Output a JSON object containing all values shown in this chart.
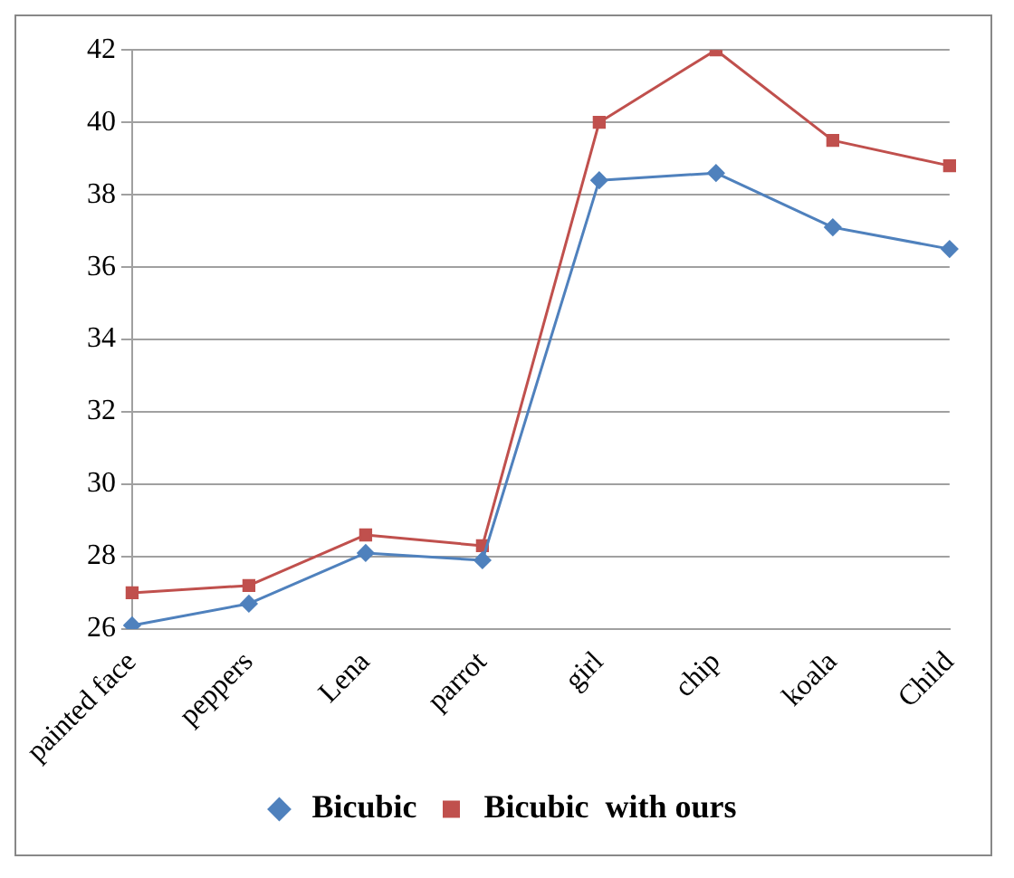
{
  "chart_data": {
    "type": "line",
    "categories": [
      "painted face",
      "peppers",
      "Lena",
      "parrot",
      "girl",
      "chip",
      "koala",
      "Child"
    ],
    "series": [
      {
        "name": "Bicubic",
        "color": "#4f81bd",
        "marker": "diamond",
        "values": [
          26.1,
          26.7,
          28.1,
          27.9,
          38.4,
          38.6,
          37.1,
          36.5
        ]
      },
      {
        "name": "Bicubic  with ours",
        "color": "#c0504d",
        "marker": "square",
        "values": [
          27.0,
          27.2,
          28.6,
          28.3,
          40.0,
          42.0,
          39.5,
          38.8
        ]
      }
    ],
    "ylim": [
      26,
      42
    ],
    "yticks": [
      26,
      28,
      30,
      32,
      34,
      36,
      38,
      40,
      42
    ],
    "grid": "y",
    "legend": "bottom"
  }
}
